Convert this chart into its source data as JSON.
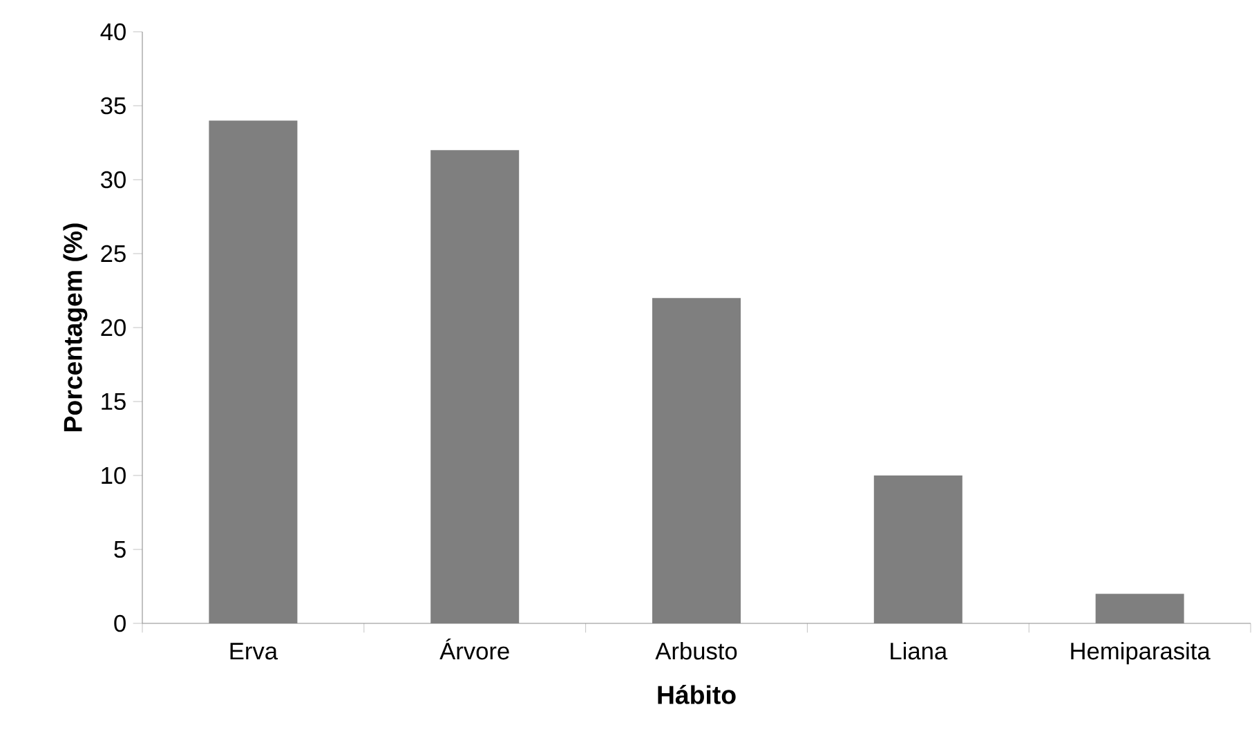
{
  "chart_data": {
    "type": "bar",
    "xlabel": "Hábito",
    "ylabel": "Porcentagem (%)",
    "categories": [
      "Erva",
      "Árvore",
      "Arbusto",
      "Liana",
      "Hemiparasita"
    ],
    "values": [
      34,
      32,
      22,
      10,
      2
    ],
    "color": "#7f7f7f",
    "ylim": [
      0,
      40
    ],
    "yticks": [
      0,
      5,
      10,
      15,
      20,
      25,
      30,
      35,
      40
    ],
    "grid": false
  }
}
